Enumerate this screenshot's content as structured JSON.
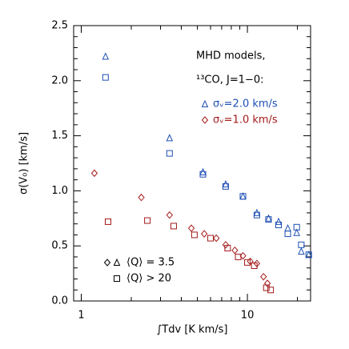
{
  "chart_data": {
    "type": "scatter",
    "xlabel": "∫Tdv [K km/s]",
    "ylabel": "σ(V₀) [km/s]",
    "log_x": true,
    "xlim": [
      0.9,
      24
    ],
    "ylim": [
      0,
      2.5
    ],
    "xticks": [
      1,
      10
    ],
    "xminorticks": [
      2,
      3,
      4,
      5,
      6,
      7,
      8,
      9,
      20
    ],
    "yticks": [
      {
        "value": 0,
        "label": "0.0"
      },
      {
        "value": 0.5,
        "label": "0.5"
      },
      {
        "value": 1,
        "label": "1.0"
      },
      {
        "value": 1.5,
        "label": "1.5"
      },
      {
        "value": 2,
        "label": "2.0"
      },
      {
        "value": 2.5,
        "label": "2.5"
      }
    ],
    "yminorticks": [
      0.1,
      0.2,
      0.3,
      0.4,
      0.6,
      0.7,
      0.8,
      0.9,
      1.1,
      1.2,
      1.3,
      1.4,
      1.6,
      1.7,
      1.8,
      1.9,
      2.1,
      2.2,
      2.3,
      2.4
    ],
    "annotations": [
      "MHD models,",
      "¹³CO, J=1−0:"
    ],
    "legend_colors": [
      {
        "label": "σᵥ=2.0 km/s",
        "color": "#1f4fb4",
        "marker": "triangle"
      },
      {
        "label": "σᵥ=1.0 km/s",
        "color": "#a31a1a",
        "marker": "diamond"
      }
    ],
    "legend_shapes": [
      {
        "label": "⟨Q⟩ = 3.5",
        "markers": [
          "diamond",
          "triangle"
        ]
      },
      {
        "label": "⟨Q⟩ > 20",
        "markers": [
          "square"
        ]
      }
    ],
    "series": [
      {
        "color": "#1f4fb4",
        "marker": "triangle",
        "x": [
          1.4,
          3.4,
          5.4,
          7.4,
          9.4,
          11.4,
          13.4,
          15.4,
          17.5,
          19.8,
          21.1,
          23.4
        ],
        "values": [
          2.22,
          1.48,
          1.17,
          1.06,
          0.95,
          0.8,
          0.75,
          0.72,
          0.66,
          0.62,
          0.45,
          0.42
        ]
      },
      {
        "color": "#1f4fb4",
        "marker": "square",
        "x": [
          1.4,
          3.4,
          5.4,
          7.4,
          9.4,
          11.4,
          13.4,
          15.4,
          17.5,
          19.8,
          21.1,
          23.4
        ],
        "values": [
          2.03,
          1.34,
          1.15,
          1.04,
          0.95,
          0.78,
          0.74,
          0.69,
          0.61,
          0.67,
          0.51,
          0.42
        ]
      },
      {
        "color": "#a31a1a",
        "marker": "diamond",
        "x": [
          1.2,
          2.3,
          3.4,
          4.6,
          5.5,
          6.5,
          7.4,
          8.4,
          9.4,
          10.4,
          11.4,
          12.5,
          13.2
        ],
        "values": [
          1.16,
          0.94,
          0.78,
          0.66,
          0.61,
          0.57,
          0.51,
          0.46,
          0.41,
          0.36,
          0.34,
          0.22,
          0.16
        ]
      },
      {
        "color": "#a31a1a",
        "marker": "square",
        "x": [
          1.45,
          2.5,
          3.6,
          4.8,
          6.0,
          7.6,
          8.8,
          10.0,
          11.0,
          13.0,
          13.8
        ],
        "values": [
          0.72,
          0.73,
          0.68,
          0.6,
          0.57,
          0.48,
          0.4,
          0.35,
          0.32,
          0.12,
          0.1
        ]
      }
    ]
  }
}
